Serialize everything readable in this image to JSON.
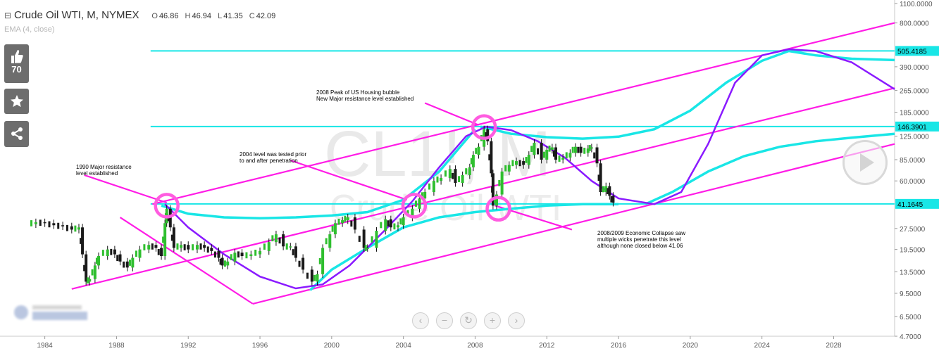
{
  "header": {
    "symbol": "Crude Oil WTI, M, NYMEX",
    "ohlc": [
      {
        "k": "O",
        "v": "46.86"
      },
      {
        "k": "H",
        "v": "46.94"
      },
      {
        "k": "L",
        "v": "41.35"
      },
      {
        "k": "C",
        "v": "42.09"
      }
    ],
    "indicator": "EMA (4, close)"
  },
  "watermark": {
    "big": "CL1!, M",
    "small": "Crude Oil WTI"
  },
  "sidebar": {
    "likes": "70"
  },
  "colors": {
    "price_up": "#2fbf2f",
    "price_down": "#1a1a1a",
    "trendline": "#ff1ce6",
    "level": "#19e6e6",
    "curve": "#8a1aff",
    "circle": "#ff5ce0"
  },
  "chart_data": {
    "type": "candlestick",
    "title": "Crude Oil WTI, M, NYMEX",
    "scale": "log",
    "xlim": [
      1981.5,
      2031.4
    ],
    "ylim": [
      4.7,
      1100
    ],
    "x_ticks": [
      "1984",
      "1988",
      "1992",
      "1996",
      "2000",
      "2004",
      "2008",
      "2012",
      "2016",
      "2020",
      "2024",
      "2028"
    ],
    "y_ticks": [
      "1100.0000",
      "800.0000",
      "390.0000",
      "265.0000",
      "185.0000",
      "125.0000",
      "85.0000",
      "60.0000",
      "27.5000",
      "19.5000",
      "13.5000",
      "9.5000",
      "6.5000",
      "4.7000"
    ],
    "price_series": [
      [
        1983.0,
        29.5
      ],
      [
        1983.5,
        30.5
      ],
      [
        1984.0,
        30
      ],
      [
        1984.5,
        29
      ],
      [
        1985.0,
        28.5
      ],
      [
        1985.5,
        27
      ],
      [
        1985.9,
        28
      ],
      [
        1986.1,
        18
      ],
      [
        1986.3,
        11.5
      ],
      [
        1986.5,
        12
      ],
      [
        1986.8,
        15
      ],
      [
        1987.0,
        17.5
      ],
      [
        1987.5,
        19.5
      ],
      [
        1987.9,
        18
      ],
      [
        1988.2,
        16
      ],
      [
        1988.6,
        14.5
      ],
      [
        1988.9,
        17
      ],
      [
        1989.3,
        19.5
      ],
      [
        1989.8,
        21
      ],
      [
        1990.2,
        20
      ],
      [
        1990.5,
        17.5
      ],
      [
        1990.7,
        30
      ],
      [
        1990.8,
        38
      ],
      [
        1991.0,
        28
      ],
      [
        1991.2,
        20
      ],
      [
        1991.6,
        21
      ],
      [
        1992.0,
        19.5
      ],
      [
        1992.5,
        21
      ],
      [
        1992.9,
        20
      ],
      [
        1993.3,
        19
      ],
      [
        1993.7,
        17
      ],
      [
        1993.9,
        15
      ],
      [
        1994.2,
        16
      ],
      [
        1994.6,
        18.5
      ],
      [
        1995.0,
        17.5
      ],
      [
        1995.5,
        18
      ],
      [
        1996.0,
        19
      ],
      [
        1996.5,
        22
      ],
      [
        1996.9,
        25
      ],
      [
        1997.3,
        20.5
      ],
      [
        1997.7,
        20.5
      ],
      [
        1998.0,
        17
      ],
      [
        1998.4,
        14
      ],
      [
        1998.9,
        11.5
      ],
      [
        1999.2,
        13
      ],
      [
        1999.5,
        20
      ],
      [
        1999.9,
        25
      ],
      [
        2000.2,
        30
      ],
      [
        2000.6,
        31.5
      ],
      [
        2000.9,
        33
      ],
      [
        2001.3,
        27
      ],
      [
        2001.8,
        20
      ],
      [
        2002.0,
        20
      ],
      [
        2002.5,
        26.5
      ],
      [
        2003.0,
        32
      ],
      [
        2003.3,
        28
      ],
      [
        2003.7,
        29
      ],
      [
        2004.0,
        33
      ],
      [
        2004.5,
        38
      ],
      [
        2004.9,
        45
      ],
      [
        2005.2,
        50
      ],
      [
        2005.7,
        60
      ],
      [
        2006.1,
        63
      ],
      [
        2006.6,
        73
      ],
      [
        2006.9,
        58
      ],
      [
        2007.3,
        66
      ],
      [
        2007.7,
        75
      ],
      [
        2007.9,
        92
      ],
      [
        2008.2,
        105
      ],
      [
        2008.5,
        140
      ],
      [
        2008.7,
        115
      ],
      [
        2008.9,
        68
      ],
      [
        2009.0,
        40
      ],
      [
        2009.2,
        48
      ],
      [
        2009.5,
        70
      ],
      [
        2009.9,
        78
      ],
      [
        2010.3,
        83
      ],
      [
        2010.7,
        78
      ],
      [
        2011.0,
        92
      ],
      [
        2011.3,
        112
      ],
      [
        2011.7,
        85
      ],
      [
        2012.0,
        100
      ],
      [
        2012.3,
        104
      ],
      [
        2012.5,
        85
      ],
      [
        2012.9,
        88
      ],
      [
        2013.3,
        95
      ],
      [
        2013.6,
        105
      ],
      [
        2013.9,
        95
      ],
      [
        2014.3,
        102
      ],
      [
        2014.5,
        104
      ],
      [
        2014.8,
        80
      ],
      [
        2015.0,
        50
      ],
      [
        2015.3,
        55
      ],
      [
        2015.5,
        47
      ],
      [
        2015.7,
        42
      ]
    ],
    "horizontal_levels": [
      {
        "label": "505.4185",
        "value": 505.4185
      },
      {
        "label": "146.3901",
        "value": 146.3901
      },
      {
        "label": "41.1645",
        "value": 41.1645
      }
    ],
    "annotations": [
      {
        "text": [
          "1990 Major resistance",
          "level established"
        ],
        "x": 1990.2,
        "y": 40
      },
      {
        "text": [
          "2004 level was tested prior",
          "to and after penetration"
        ],
        "x": 2004.7,
        "y": 40
      },
      {
        "text": [
          "2008 Peak of US Housing bubble",
          "New Major resistance level established"
        ],
        "x": 2008.2,
        "y": 146
      },
      {
        "text": [
          "2008/2009 Economic Collapse saw",
          "multiple wicks penetrate this level",
          "although none closed below 41.06"
        ],
        "x": 2009.0,
        "y": 40
      }
    ]
  }
}
